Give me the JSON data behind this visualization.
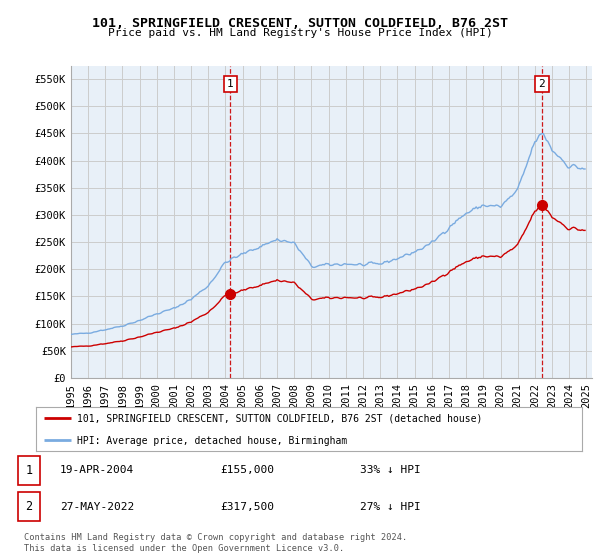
{
  "title": "101, SPRINGFIELD CRESCENT, SUTTON COLDFIELD, B76 2ST",
  "subtitle": "Price paid vs. HM Land Registry's House Price Index (HPI)",
  "legend_label_red": "101, SPRINGFIELD CRESCENT, SUTTON COLDFIELD, B76 2ST (detached house)",
  "legend_label_blue": "HPI: Average price, detached house, Birmingham",
  "annotation1_label": "1",
  "annotation1_date": "19-APR-2004",
  "annotation1_price": "£155,000",
  "annotation1_hpi": "33% ↓ HPI",
  "annotation1_year": 2004.29,
  "annotation1_value": 155000,
  "annotation2_label": "2",
  "annotation2_date": "27-MAY-2022",
  "annotation2_price": "£317,500",
  "annotation2_hpi": "27% ↓ HPI",
  "annotation2_year": 2022.41,
  "annotation2_value": 317500,
  "ylim": [
    0,
    575000
  ],
  "xlim_start": 1995.0,
  "xlim_end": 2025.3,
  "yticks": [
    0,
    50000,
    100000,
    150000,
    200000,
    250000,
    300000,
    350000,
    400000,
    450000,
    500000,
    550000
  ],
  "ytick_labels": [
    "£0",
    "£50K",
    "£100K",
    "£150K",
    "£200K",
    "£250K",
    "£300K",
    "£350K",
    "£400K",
    "£450K",
    "£500K",
    "£550K"
  ],
  "xticks": [
    1995,
    1996,
    1997,
    1998,
    1999,
    2000,
    2001,
    2002,
    2003,
    2004,
    2005,
    2006,
    2007,
    2008,
    2009,
    2010,
    2011,
    2012,
    2013,
    2014,
    2015,
    2016,
    2017,
    2018,
    2019,
    2020,
    2021,
    2022,
    2023,
    2024,
    2025
  ],
  "grid_color": "#cccccc",
  "red_color": "#cc0000",
  "blue_color": "#7aabe0",
  "plot_bg_color": "#e8f0f8",
  "background_color": "#ffffff",
  "footnote": "Contains HM Land Registry data © Crown copyright and database right 2024.\nThis data is licensed under the Open Government Licence v3.0."
}
